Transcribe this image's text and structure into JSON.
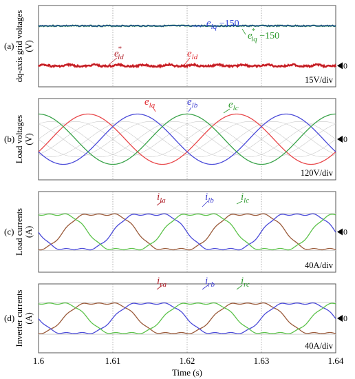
{
  "chart_data": [
    {
      "type": "line",
      "panel_label": "(a)",
      "ylabel": "dq-axis grid voltages (V)",
      "scale_label": "15V/div",
      "zero_marker": "0",
      "series": [
        {
          "name": "e_lq −150",
          "color": "#1f4fa8",
          "description_value": "approximately constant at 0 after offset (≈ +2.6 div)"
        },
        {
          "name": "e*_lq −150",
          "color": "#2e8b57"
        },
        {
          "name": "e*_ld",
          "color": "#c0272d"
        },
        {
          "name": "e_ld",
          "color": "#e0282e"
        }
      ],
      "annotations": [
        {
          "main": "e",
          "sub": "lq",
          "suffix": " −150",
          "color": "#2a3fd6"
        },
        {
          "main": "e",
          "sub": "lq",
          "sup": "*",
          "suffix": " −150",
          "color": "#2e9a2e"
        },
        {
          "main": "e",
          "sub": "ld",
          "sup": "*",
          "suffix": "",
          "color": "#b0202a"
        },
        {
          "main": "e",
          "sub": "ld",
          "suffix": "",
          "color": "#e0282e"
        }
      ]
    },
    {
      "type": "line",
      "panel_label": "(b)",
      "ylabel": "Load voltages (V)",
      "scale_label": "120V/div",
      "zero_marker": "0",
      "frequency_hz": 50,
      "amplitude_div": 1.3,
      "series": [
        {
          "name": "e_la",
          "sub": "la",
          "phase_deg": -30,
          "color": "#e8474a"
        },
        {
          "name": "e_lb",
          "sub": "lb",
          "phase_deg": -150,
          "color": "#4a4ad8"
        },
        {
          "name": "e_lc",
          "sub": "lc",
          "phase_deg": 90,
          "color": "#3aa34a"
        }
      ],
      "label_main": "e"
    },
    {
      "type": "line",
      "panel_label": "(c)",
      "ylabel": "Load currents (A)",
      "scale_label": "40A/div",
      "zero_marker": "0",
      "frequency_hz": 50,
      "amplitude_div": 1.1,
      "series": [
        {
          "name": "i_la",
          "sub": "la",
          "phase_deg": -60,
          "color": "#9a5a3a"
        },
        {
          "name": "i_lb",
          "sub": "lb",
          "phase_deg": -180,
          "color": "#4a4ad8"
        },
        {
          "name": "i_lc",
          "sub": "lc",
          "phase_deg": 60,
          "color": "#5cc24a"
        }
      ],
      "label_main": "i"
    },
    {
      "type": "line",
      "panel_label": "(d)",
      "ylabel": "Inverter currents (A)",
      "scale_label": "40A/div",
      "zero_marker": "0",
      "frequency_hz": 50,
      "amplitude_div": 1.1,
      "series": [
        {
          "name": "i_ra",
          "sub": "ra",
          "phase_deg": -60,
          "color": "#9a5a3a"
        },
        {
          "name": "i_rb",
          "sub": "rb",
          "phase_deg": -180,
          "color": "#4a4ad8"
        },
        {
          "name": "i_rc",
          "sub": "rc",
          "phase_deg": 60,
          "color": "#5cc24a"
        }
      ],
      "label_main": "i"
    }
  ],
  "x_axis": {
    "label": "Time (s)",
    "ticks": [
      "1.6",
      "1.61",
      "1.62",
      "1.63",
      "1.64"
    ],
    "range": [
      1.6,
      1.64
    ]
  }
}
